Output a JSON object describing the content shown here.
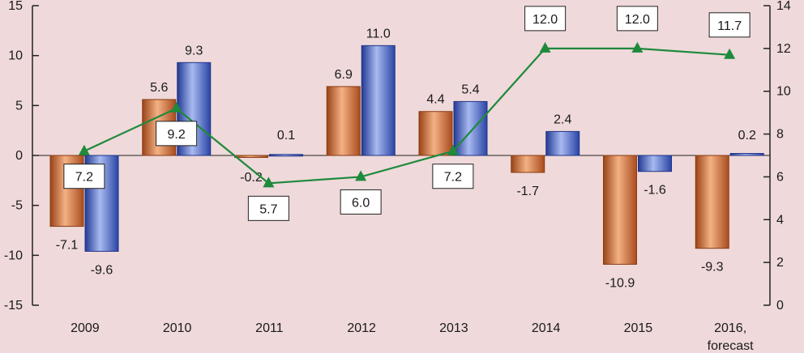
{
  "chart_data": {
    "type": "bar",
    "categories": [
      "2009",
      "2010",
      "2011",
      "2012",
      "2013",
      "2014",
      "2015",
      "2016, forecast"
    ],
    "series": [
      {
        "kind": "bar",
        "axis": "left",
        "color": "#c8632a",
        "values": [
          -7.1,
          5.6,
          -0.2,
          6.9,
          4.4,
          -1.7,
          -10.9,
          -9.3
        ],
        "labels": [
          "-7.1",
          "5.6",
          "-0.2",
          "6.9",
          "4.4",
          "-1.7",
          "-10.9",
          "-9.3"
        ]
      },
      {
        "kind": "bar",
        "axis": "left",
        "color": "#3a55b4",
        "values": [
          -9.6,
          9.3,
          0.1,
          11.0,
          5.4,
          2.4,
          -1.6,
          0.2
        ],
        "labels": [
          "-9.6",
          "9.3",
          "0.1",
          "11.0",
          "5.4",
          "2.4",
          "-1.6",
          "0.2"
        ]
      },
      {
        "kind": "line",
        "axis": "right",
        "color": "#1e8a3c",
        "values": [
          7.2,
          9.2,
          5.7,
          6.0,
          7.2,
          12.0,
          12.0,
          11.7
        ],
        "labels": [
          "7.2",
          "9.2",
          "5.7",
          "6.0",
          "7.2",
          "12.0",
          "12.0",
          "11.7"
        ]
      }
    ],
    "y_left": {
      "min": -15,
      "max": 15,
      "ticks": [
        "-15",
        "-10",
        "-5",
        "0",
        "5",
        "10",
        "15"
      ]
    },
    "y_right": {
      "min": 0,
      "max": 14,
      "ticks": [
        "0",
        "2",
        "4",
        "6",
        "8",
        "10",
        "12",
        "14"
      ]
    },
    "grid": false,
    "legend": "none"
  }
}
